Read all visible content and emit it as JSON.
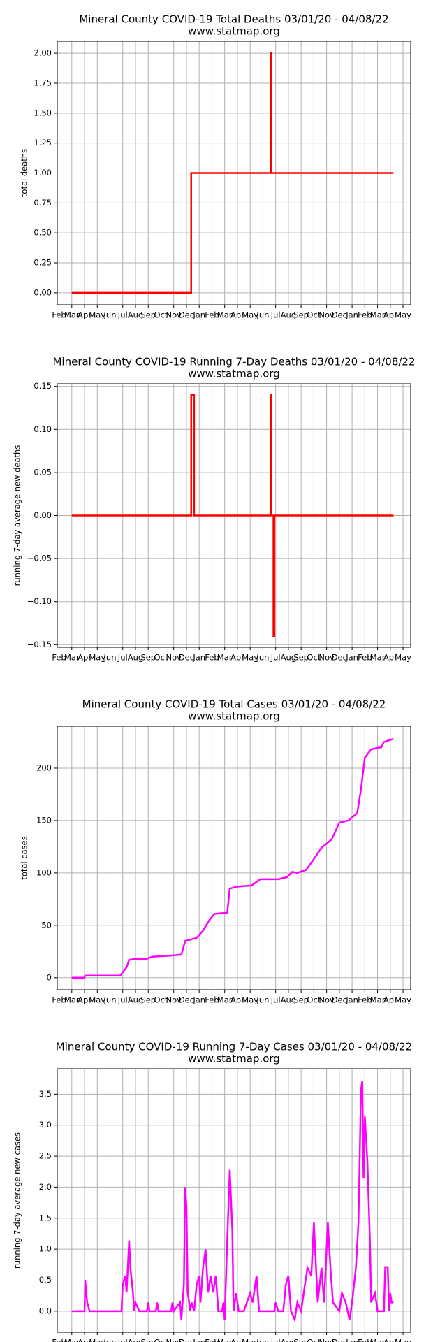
{
  "chart_data": [
    {
      "type": "line",
      "title": "Mineral County COVID-19 Total Deaths 03/01/20 - 04/08/22",
      "subtitle": "www.statmap.org",
      "y_label": "total deaths",
      "color": "#ff0000",
      "grid": true,
      "x": [
        1,
        10.37,
        10.37,
        16.6,
        16.6,
        16.65,
        16.65,
        26.25
      ],
      "values": [
        0,
        0,
        1,
        1,
        2,
        2,
        1,
        1
      ],
      "xlim": [
        -0.14,
        27.6
      ],
      "ylim": [
        -0.1,
        2.1
      ],
      "yticks": [
        {
          "value": 0,
          "label": "0.00"
        },
        {
          "value": 0.25,
          "label": "0.25"
        },
        {
          "value": 0.5,
          "label": "0.50"
        },
        {
          "value": 0.75,
          "label": "0.75"
        },
        {
          "value": 1,
          "label": "1.00"
        },
        {
          "value": 1.25,
          "label": "1.25"
        },
        {
          "value": 1.5,
          "label": "1.50"
        },
        {
          "value": 1.75,
          "label": "1.75"
        },
        {
          "value": 2,
          "label": "2.00"
        }
      ],
      "xticks": [
        {
          "value": 0,
          "label": "Feb"
        },
        {
          "value": 1,
          "label": "Mar"
        },
        {
          "value": 2,
          "label": "Apr"
        },
        {
          "value": 3,
          "label": "May"
        },
        {
          "value": 4,
          "label": "Jun"
        },
        {
          "value": 5,
          "label": "Jul"
        },
        {
          "value": 6,
          "label": "Aug"
        },
        {
          "value": 7,
          "label": "Sep"
        },
        {
          "value": 8,
          "label": "Oct"
        },
        {
          "value": 9,
          "label": "Nov"
        },
        {
          "value": 10,
          "label": "Dec"
        },
        {
          "value": 11,
          "label": "Jan"
        },
        {
          "value": 12,
          "label": "Feb"
        },
        {
          "value": 13,
          "label": "Mar"
        },
        {
          "value": 14,
          "label": "Apr"
        },
        {
          "value": 15,
          "label": "May"
        },
        {
          "value": 16,
          "label": "Jun"
        },
        {
          "value": 17,
          "label": "Jul"
        },
        {
          "value": 18,
          "label": "Aug"
        },
        {
          "value": 19,
          "label": "Sep"
        },
        {
          "value": 20,
          "label": "Oct"
        },
        {
          "value": 21,
          "label": "Nov"
        },
        {
          "value": 22,
          "label": "Dec"
        },
        {
          "value": 23,
          "label": "Jan"
        },
        {
          "value": 24,
          "label": "Feb"
        },
        {
          "value": 25,
          "label": "Mar"
        },
        {
          "value": 26,
          "label": "Apr"
        },
        {
          "value": 27,
          "label": "May"
        }
      ]
    },
    {
      "type": "line",
      "title": "Mineral County COVID-19 Running 7-Day Deaths 03/01/20 - 04/08/22",
      "subtitle": "www.statmap.org",
      "y_label": "running 7-day average new deaths",
      "color": "#ff0000",
      "grid": true,
      "x": [
        1,
        10.37,
        10.37,
        10.6,
        10.6,
        16.6,
        16.6,
        16.65,
        16.65,
        16.83,
        16.83,
        16.9,
        16.9,
        26.25
      ],
      "values": [
        0,
        0,
        0.14,
        0.14,
        0,
        0,
        0.14,
        0.14,
        0,
        0,
        -0.14,
        -0.14,
        0,
        0
      ],
      "xlim": [
        -0.14,
        27.6
      ],
      "ylim": [
        -0.153,
        0.153
      ],
      "yticks": [
        {
          "value": -0.15,
          "label": "−0.15"
        },
        {
          "value": -0.1,
          "label": "−0.10"
        },
        {
          "value": -0.05,
          "label": "−0.05"
        },
        {
          "value": 0,
          "label": "0.00"
        },
        {
          "value": 0.05,
          "label": "0.05"
        },
        {
          "value": 0.1,
          "label": "0.10"
        },
        {
          "value": 0.15,
          "label": "0.15"
        }
      ],
      "xticks": [
        {
          "value": 0,
          "label": "Feb"
        },
        {
          "value": 1,
          "label": "Mar"
        },
        {
          "value": 2,
          "label": "Apr"
        },
        {
          "value": 3,
          "label": "May"
        },
        {
          "value": 4,
          "label": "Jun"
        },
        {
          "value": 5,
          "label": "Jul"
        },
        {
          "value": 6,
          "label": "Aug"
        },
        {
          "value": 7,
          "label": "Sep"
        },
        {
          "value": 8,
          "label": "Oct"
        },
        {
          "value": 9,
          "label": "Nov"
        },
        {
          "value": 10,
          "label": "Dec"
        },
        {
          "value": 11,
          "label": "Jan"
        },
        {
          "value": 12,
          "label": "Feb"
        },
        {
          "value": 13,
          "label": "Mar"
        },
        {
          "value": 14,
          "label": "Apr"
        },
        {
          "value": 15,
          "label": "May"
        },
        {
          "value": 16,
          "label": "Jun"
        },
        {
          "value": 17,
          "label": "Jul"
        },
        {
          "value": 18,
          "label": "Aug"
        },
        {
          "value": 19,
          "label": "Sep"
        },
        {
          "value": 20,
          "label": "Oct"
        },
        {
          "value": 21,
          "label": "Nov"
        },
        {
          "value": 22,
          "label": "Dec"
        },
        {
          "value": 23,
          "label": "Jan"
        },
        {
          "value": 24,
          "label": "Feb"
        },
        {
          "value": 25,
          "label": "Mar"
        },
        {
          "value": 26,
          "label": "Apr"
        },
        {
          "value": 27,
          "label": "May"
        }
      ]
    },
    {
      "type": "line",
      "title": "Mineral County COVID-19 Total Cases 03/01/20 - 04/08/22",
      "subtitle": "www.statmap.org",
      "y_label": "total cases",
      "color": "#ff00ff",
      "grid": true,
      "x": [
        1,
        2.0,
        2.05,
        4.8,
        5.3,
        5.5,
        6.0,
        6.9,
        7.3,
        8.7,
        9.6,
        9.9,
        10.8,
        11.3,
        11.8,
        12.2,
        13.2,
        13.4,
        14.0,
        15.1,
        15.8,
        17.2,
        17.9,
        18.3,
        18.7,
        19.4,
        20.1,
        20.6,
        21.4,
        22.0,
        22.7,
        23.4,
        23.7,
        24.0,
        24.5,
        25.3,
        25.5,
        26.25
      ],
      "values": [
        0,
        0,
        2,
        2,
        10,
        17,
        18,
        18,
        20,
        21,
        22,
        35,
        38,
        45,
        55,
        61,
        62,
        85,
        87,
        88,
        94,
        94,
        96,
        101,
        100,
        103,
        115,
        124,
        132,
        148,
        150,
        157,
        180,
        210,
        218,
        220,
        225,
        228
      ],
      "xlim": [
        -0.14,
        27.6
      ],
      "ylim": [
        -11.5,
        240
      ],
      "yticks": [
        0,
        50,
        100,
        150,
        200
      ],
      "xticks": [
        {
          "value": 0,
          "label": "Feb"
        },
        {
          "value": 1,
          "label": "Mar"
        },
        {
          "value": 2,
          "label": "Apr"
        },
        {
          "value": 3,
          "label": "May"
        },
        {
          "value": 4,
          "label": "Jun"
        },
        {
          "value": 5,
          "label": "Jul"
        },
        {
          "value": 6,
          "label": "Aug"
        },
        {
          "value": 7,
          "label": "Sep"
        },
        {
          "value": 8,
          "label": "Oct"
        },
        {
          "value": 9,
          "label": "Nov"
        },
        {
          "value": 10,
          "label": "Dec"
        },
        {
          "value": 11,
          "label": "Jan"
        },
        {
          "value": 12,
          "label": "Feb"
        },
        {
          "value": 13,
          "label": "Mar"
        },
        {
          "value": 14,
          "label": "Apr"
        },
        {
          "value": 15,
          "label": "May"
        },
        {
          "value": 16,
          "label": "Jun"
        },
        {
          "value": 17,
          "label": "Jul"
        },
        {
          "value": 18,
          "label": "Aug"
        },
        {
          "value": 19,
          "label": "Sep"
        },
        {
          "value": 20,
          "label": "Oct"
        },
        {
          "value": 21,
          "label": "Nov"
        },
        {
          "value": 22,
          "label": "Dec"
        },
        {
          "value": 23,
          "label": "Jan"
        },
        {
          "value": 24,
          "label": "Feb"
        },
        {
          "value": 25,
          "label": "Mar"
        },
        {
          "value": 26,
          "label": "Apr"
        },
        {
          "value": 27,
          "label": "May"
        }
      ]
    },
    {
      "type": "line",
      "title": "Mineral County COVID-19 Running 7-Day Cases 03/01/20 - 04/08/22",
      "subtitle": "www.statmap.org",
      "y_label": "running 7-day average new cases",
      "color": "#ff00ff",
      "grid": true,
      "x": [
        1,
        2.0,
        2.05,
        2.2,
        2.4,
        4.9,
        5.0,
        5.2,
        5.3,
        5.5,
        5.6,
        5.8,
        5.9,
        6.0,
        6.3,
        6.9,
        7.0,
        7.1,
        7.6,
        7.7,
        7.8,
        8.8,
        8.9,
        9.0,
        9.5,
        9.6,
        9.8,
        9.9,
        10.0,
        10.1,
        10.3,
        10.4,
        10.6,
        10.8,
        11.0,
        11.1,
        11.3,
        11.5,
        11.7,
        11.9,
        12.1,
        12.3,
        12.5,
        12.8,
        12.9,
        13.0,
        13.2,
        13.4,
        13.6,
        13.7,
        13.9,
        14.1,
        14.5,
        15.0,
        15.2,
        15.5,
        15.7,
        16.9,
        17.0,
        17.2,
        17.6,
        17.8,
        18.0,
        18.2,
        18.5,
        18.7,
        19.0,
        19.3,
        19.5,
        19.8,
        20.0,
        20.3,
        20.6,
        20.8,
        21.1,
        21.3,
        21.5,
        22.0,
        22.2,
        22.5,
        22.8,
        23.0,
        23.3,
        23.5,
        23.7,
        23.8,
        23.9,
        24.0,
        24.2,
        24.4,
        24.5,
        24.8,
        25.0,
        25.5,
        25.6,
        25.8,
        25.9,
        26.0,
        26.1,
        26.25
      ],
      "values": [
        0,
        0,
        0.5,
        0.15,
        0,
        0,
        0.43,
        0.57,
        0.3,
        1.14,
        0.7,
        0.3,
        0,
        0.14,
        0,
        0,
        0.14,
        0,
        0,
        0.14,
        0,
        0,
        0.14,
        0,
        0.14,
        -0.14,
        0.43,
        2.0,
        1.7,
        0.3,
        0,
        0.14,
        0,
        0.43,
        0.57,
        0.14,
        0.7,
        1.0,
        0.3,
        0.57,
        0.3,
        0.57,
        0,
        0,
        0.14,
        -0.14,
        1.14,
        2.28,
        1.3,
        0,
        0.29,
        0,
        0,
        0.29,
        0.14,
        0.57,
        0,
        0,
        0.14,
        0,
        0,
        0.43,
        0.57,
        0,
        -0.14,
        0.14,
        0,
        0.43,
        0.7,
        0.57,
        1.43,
        0.14,
        0.7,
        0.14,
        1.43,
        0.7,
        0.14,
        0,
        0.29,
        0.14,
        -0.14,
        0.14,
        0.7,
        1.43,
        3.57,
        3.71,
        2.14,
        3.14,
        2.43,
        1.14,
        0.14,
        0.29,
        0,
        0,
        0.71,
        0.71,
        0,
        0.29,
        0.14,
        0.14
      ],
      "xlim": [
        -0.14,
        27.6
      ],
      "ylim": [
        -0.34,
        3.91
      ],
      "yticks": [
        {
          "value": 0,
          "label": "0.0"
        },
        0.5,
        {
          "value": 1,
          "label": "1.0"
        },
        1.5,
        {
          "value": 2,
          "label": "2.0"
        },
        2.5,
        {
          "value": 3,
          "label": "3.0"
        },
        3.5
      ],
      "xticks": [
        {
          "value": 0,
          "label": "Feb"
        },
        {
          "value": 1,
          "label": "Mar"
        },
        {
          "value": 2,
          "label": "Apr"
        },
        {
          "value": 3,
          "label": "May"
        },
        {
          "value": 4,
          "label": "Jun"
        },
        {
          "value": 5,
          "label": "Jul"
        },
        {
          "value": 6,
          "label": "Aug"
        },
        {
          "value": 7,
          "label": "Sep"
        },
        {
          "value": 8,
          "label": "Oct"
        },
        {
          "value": 9,
          "label": "Nov"
        },
        {
          "value": 10,
          "label": "Dec"
        },
        {
          "value": 11,
          "label": "Jan"
        },
        {
          "value": 12,
          "label": "Feb"
        },
        {
          "value": 13,
          "label": "Mar"
        },
        {
          "value": 14,
          "label": "Apr"
        },
        {
          "value": 15,
          "label": "May"
        },
        {
          "value": 16,
          "label": "Jun"
        },
        {
          "value": 17,
          "label": "Jul"
        },
        {
          "value": 18,
          "label": "Aug"
        },
        {
          "value": 19,
          "label": "Sep"
        },
        {
          "value": 20,
          "label": "Oct"
        },
        {
          "value": 21,
          "label": "Nov"
        },
        {
          "value": 22,
          "label": "Dec"
        },
        {
          "value": 23,
          "label": "Jan"
        },
        {
          "value": 24,
          "label": "Feb"
        },
        {
          "value": 25,
          "label": "Mar"
        },
        {
          "value": 26,
          "label": "Apr"
        },
        {
          "value": 27,
          "label": "May"
        }
      ]
    }
  ]
}
